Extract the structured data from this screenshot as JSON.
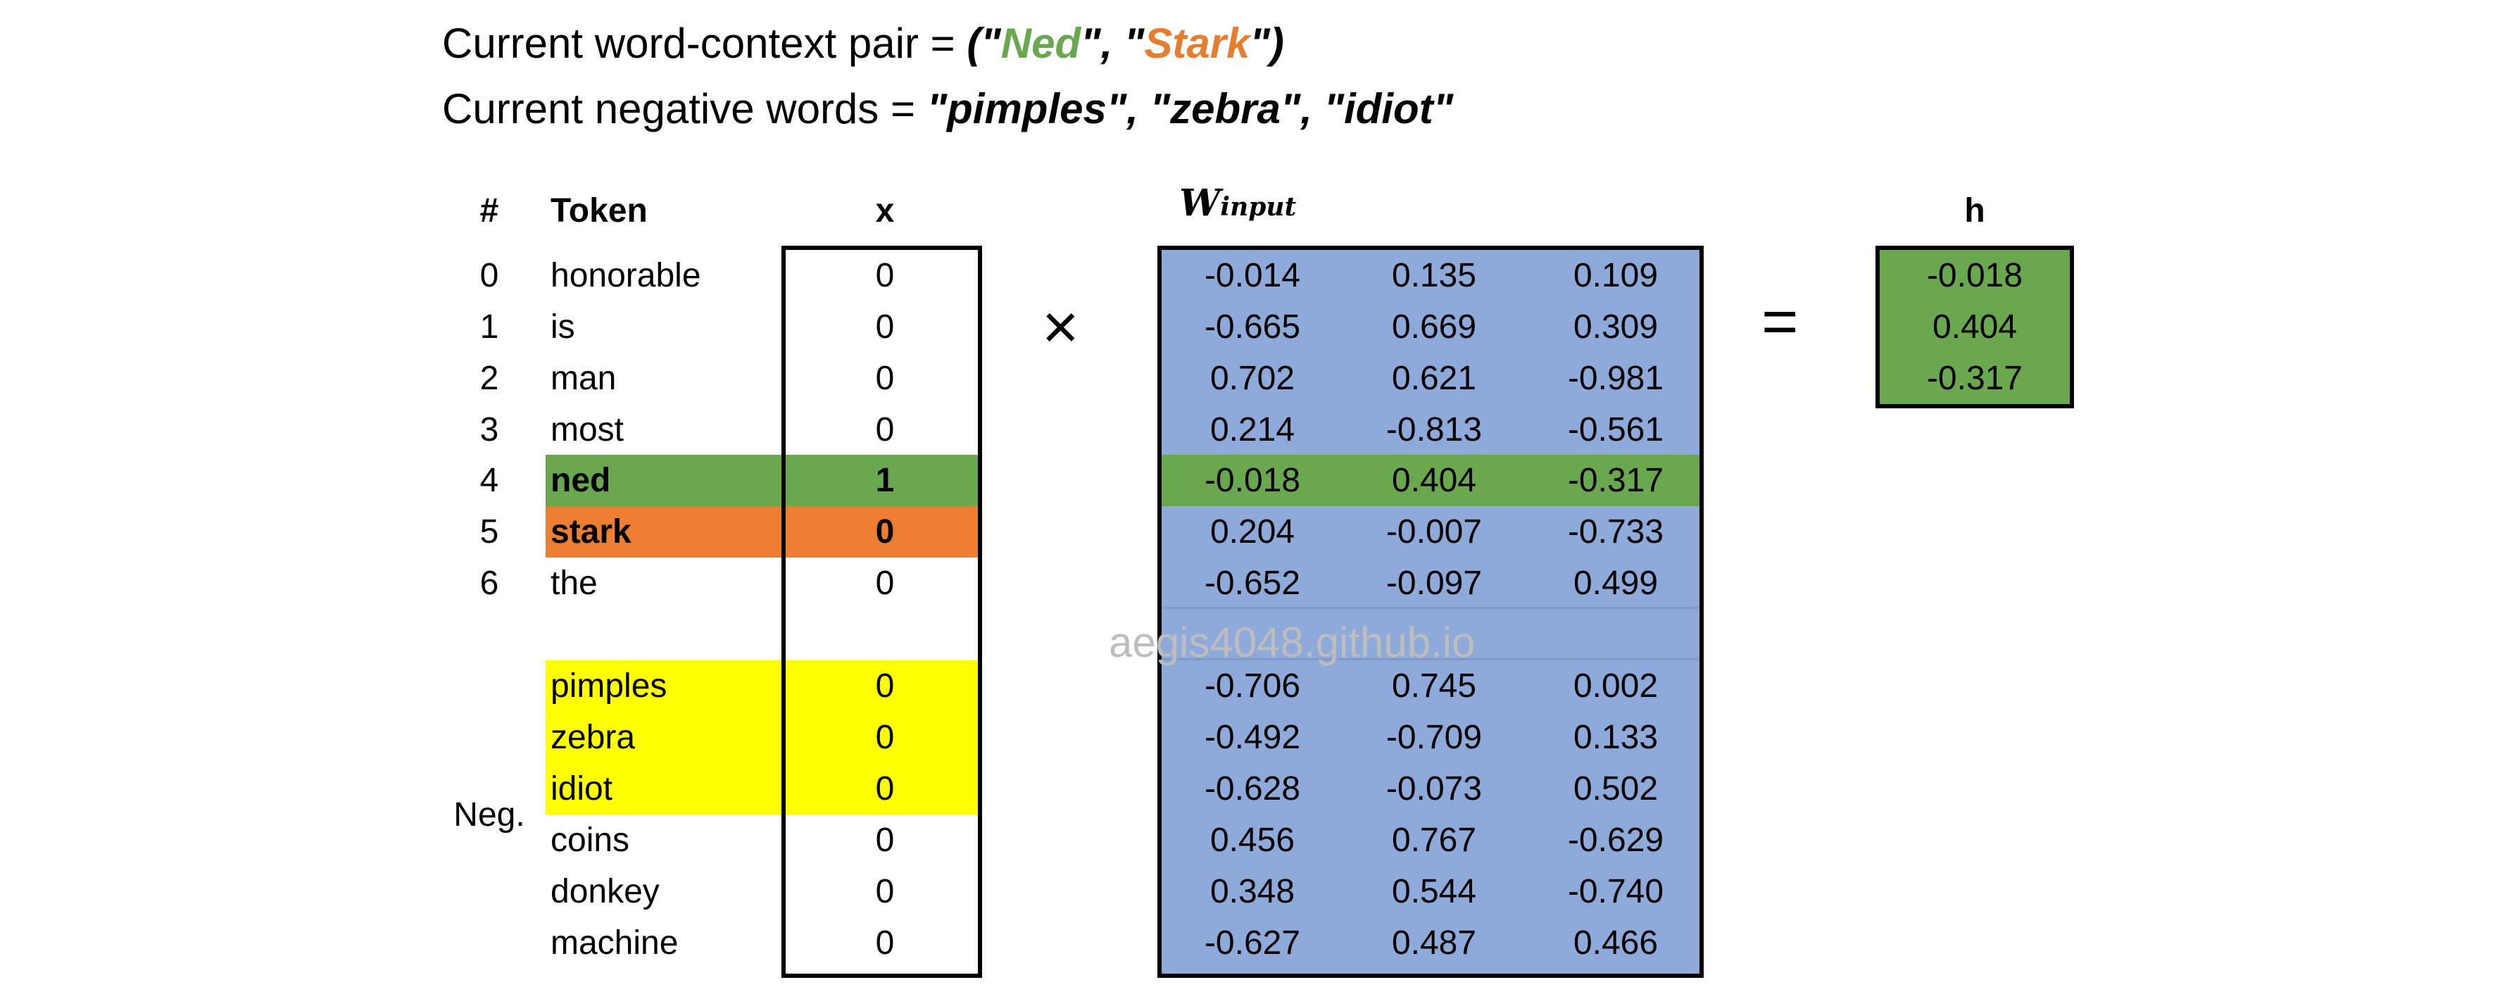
{
  "header": {
    "line1_prefix": "Current word-context pair = ",
    "line1_open": "(\"",
    "word": "Ned",
    "line1_mid": "\", \"",
    "context": "Stark",
    "line1_close": "\")",
    "line2_prefix": "Current negative words = ",
    "line2_words": "\"pimples\", \"zebra\", \"idiot\""
  },
  "columns": {
    "index": "#",
    "token": "Token",
    "x": "x",
    "w_main": "W",
    "w_sub": "input",
    "h": "h"
  },
  "operators": {
    "times": "×",
    "equals": "="
  },
  "neg_label": "Neg.",
  "watermark": "aegis4048.github.io",
  "rows": [
    {
      "index": "0",
      "token": "honorable",
      "x": "0",
      "w": [
        "-0.014",
        "0.135",
        "0.109"
      ]
    },
    {
      "index": "1",
      "token": "is",
      "x": "0",
      "w": [
        "-0.665",
        "0.669",
        "0.309"
      ]
    },
    {
      "index": "2",
      "token": "man",
      "x": "0",
      "w": [
        "0.702",
        "0.621",
        "-0.981"
      ]
    },
    {
      "index": "3",
      "token": "most",
      "x": "0",
      "w": [
        "0.214",
        "-0.813",
        "-0.561"
      ]
    },
    {
      "index": "4",
      "token": "ned",
      "x": "1",
      "w": [
        "-0.018",
        "0.404",
        "-0.317"
      ]
    },
    {
      "index": "5",
      "token": "stark",
      "x": "0",
      "w": [
        "0.204",
        "-0.007",
        "-0.733"
      ]
    },
    {
      "index": "6",
      "token": "the",
      "x": "0",
      "w": [
        "-0.652",
        "-0.097",
        "0.499"
      ]
    }
  ],
  "neg_rows": [
    {
      "token": "pimples",
      "x": "0",
      "w": [
        "-0.706",
        "0.745",
        "0.002"
      ]
    },
    {
      "token": "zebra",
      "x": "0",
      "w": [
        "-0.492",
        "-0.709",
        "0.133"
      ]
    },
    {
      "token": "idiot",
      "x": "0",
      "w": [
        "-0.628",
        "-0.073",
        "0.502"
      ]
    },
    {
      "token": "coins",
      "x": "0",
      "w": [
        "0.456",
        "0.767",
        "-0.629"
      ]
    },
    {
      "token": "donkey",
      "x": "0",
      "w": [
        "0.348",
        "0.544",
        "-0.740"
      ]
    },
    {
      "token": "machine",
      "x": "0",
      "w": [
        "-0.627",
        "0.487",
        "0.466"
      ]
    }
  ],
  "h": [
    "-0.018",
    "0.404",
    "-0.317"
  ],
  "colors": {
    "word_green": "#6aa84f",
    "context_orange": "#ed7d31",
    "negative_yellow": "#ffff00",
    "matrix_blue": "#8eaadb"
  }
}
